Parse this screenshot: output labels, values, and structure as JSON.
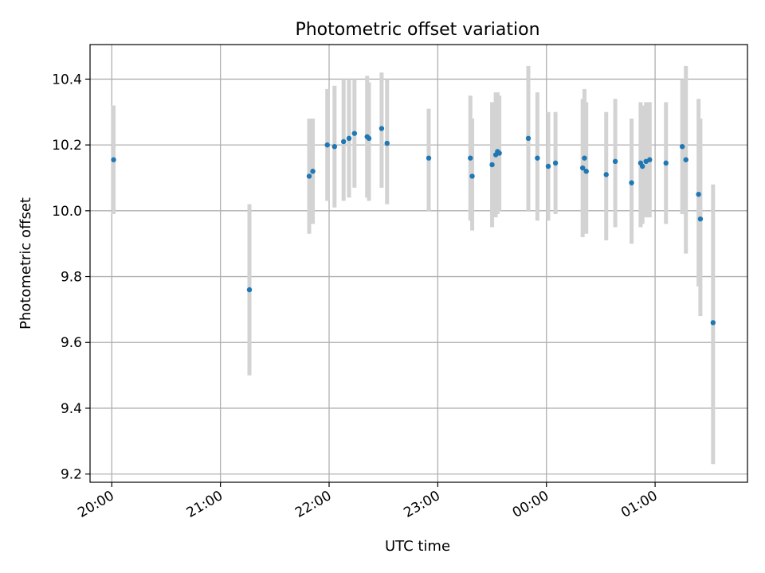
{
  "chart_data": {
    "type": "scatter",
    "title": "Photometric offset variation",
    "xlabel": "UTC time",
    "ylabel": "Photometric offset",
    "xlim": [
      "2023-01-01T19:48:00",
      "2023-01-02T01:51:00"
    ],
    "ylim": [
      9.175,
      10.505
    ],
    "grid": true,
    "x_ticks": [
      {
        "value": "2023-01-01T20:00:00",
        "label": "20:00"
      },
      {
        "value": "2023-01-01T21:00:00",
        "label": "21:00"
      },
      {
        "value": "2023-01-01T22:00:00",
        "label": "22:00"
      },
      {
        "value": "2023-01-01T23:00:00",
        "label": "23:00"
      },
      {
        "value": "2023-01-02T00:00:00",
        "label": "00:00"
      },
      {
        "value": "2023-01-02T01:00:00",
        "label": "01:00"
      }
    ],
    "y_ticks": [
      {
        "value": 9.2,
        "label": "9.2"
      },
      {
        "value": 9.4,
        "label": "9.4"
      },
      {
        "value": 9.6,
        "label": "9.6"
      },
      {
        "value": 9.8,
        "label": "9.8"
      },
      {
        "value": 10.0,
        "label": "10.0"
      },
      {
        "value": 10.2,
        "label": "10.2"
      },
      {
        "value": 10.4,
        "label": "10.4"
      }
    ],
    "colors": {
      "point": "#1f77b4",
      "errorbar": "#d3d3d3",
      "grid": "#b0b0b0"
    },
    "points": [
      {
        "x": "2023-01-01T20:01:00",
        "y": 10.155,
        "ylow": 9.99,
        "yhigh": 10.32
      },
      {
        "x": "2023-01-01T21:16:00",
        "y": 9.76,
        "ylow": 9.5,
        "yhigh": 10.02
      },
      {
        "x": "2023-01-01T21:49:00",
        "y": 10.105,
        "ylow": 9.93,
        "yhigh": 10.28
      },
      {
        "x": "2023-01-01T21:51:00",
        "y": 10.12,
        "ylow": 9.96,
        "yhigh": 10.28
      },
      {
        "x": "2023-01-01T21:59:00",
        "y": 10.2,
        "ylow": 10.03,
        "yhigh": 10.37
      },
      {
        "x": "2023-01-01T22:03:00",
        "y": 10.195,
        "ylow": 10.01,
        "yhigh": 10.38
      },
      {
        "x": "2023-01-01T22:08:00",
        "y": 10.21,
        "ylow": 10.03,
        "yhigh": 10.4
      },
      {
        "x": "2023-01-01T22:11:00",
        "y": 10.22,
        "ylow": 10.04,
        "yhigh": 10.4
      },
      {
        "x": "2023-01-01T22:14:00",
        "y": 10.235,
        "ylow": 10.07,
        "yhigh": 10.4
      },
      {
        "x": "2023-01-01T22:21:00",
        "y": 10.225,
        "ylow": 10.04,
        "yhigh": 10.41
      },
      {
        "x": "2023-01-01T22:22:00",
        "y": 10.22,
        "ylow": 10.03,
        "yhigh": 10.39
      },
      {
        "x": "2023-01-01T22:29:00",
        "y": 10.25,
        "ylow": 10.07,
        "yhigh": 10.42
      },
      {
        "x": "2023-01-01T22:32:00",
        "y": 10.205,
        "ylow": 10.02,
        "yhigh": 10.4
      },
      {
        "x": "2023-01-01T22:55:00",
        "y": 10.16,
        "ylow": 10.0,
        "yhigh": 10.31
      },
      {
        "x": "2023-01-01T23:18:00",
        "y": 10.16,
        "ylow": 9.97,
        "yhigh": 10.35
      },
      {
        "x": "2023-01-01T23:19:00",
        "y": 10.105,
        "ylow": 9.94,
        "yhigh": 10.28
      },
      {
        "x": "2023-01-01T23:30:00",
        "y": 10.14,
        "ylow": 9.95,
        "yhigh": 10.33
      },
      {
        "x": "2023-01-01T23:32:00",
        "y": 10.17,
        "ylow": 9.98,
        "yhigh": 10.36
      },
      {
        "x": "2023-01-01T23:33:00",
        "y": 10.18,
        "ylow": 9.99,
        "yhigh": 10.36
      },
      {
        "x": "2023-01-01T23:34:00",
        "y": 10.175,
        "ylow": 10.0,
        "yhigh": 10.35
      },
      {
        "x": "2023-01-01T23:50:00",
        "y": 10.22,
        "ylow": 10.0,
        "yhigh": 10.44
      },
      {
        "x": "2023-01-01T23:55:00",
        "y": 10.16,
        "ylow": 9.97,
        "yhigh": 10.36
      },
      {
        "x": "2023-01-02T00:01:00",
        "y": 10.135,
        "ylow": 9.97,
        "yhigh": 10.3
      },
      {
        "x": "2023-01-02T00:05:00",
        "y": 10.145,
        "ylow": 9.99,
        "yhigh": 10.3
      },
      {
        "x": "2023-01-02T00:20:00",
        "y": 10.13,
        "ylow": 9.92,
        "yhigh": 10.34
      },
      {
        "x": "2023-01-02T00:21:00",
        "y": 10.16,
        "ylow": 9.95,
        "yhigh": 10.37
      },
      {
        "x": "2023-01-02T00:22:00",
        "y": 10.12,
        "ylow": 9.93,
        "yhigh": 10.33
      },
      {
        "x": "2023-01-02T00:33:00",
        "y": 10.11,
        "ylow": 9.91,
        "yhigh": 10.3
      },
      {
        "x": "2023-01-02T00:38:00",
        "y": 10.15,
        "ylow": 9.95,
        "yhigh": 10.34
      },
      {
        "x": "2023-01-02T00:47:00",
        "y": 10.085,
        "ylow": 9.9,
        "yhigh": 10.28
      },
      {
        "x": "2023-01-02T00:52:00",
        "y": 10.145,
        "ylow": 9.95,
        "yhigh": 10.33
      },
      {
        "x": "2023-01-02T00:53:00",
        "y": 10.135,
        "ylow": 9.96,
        "yhigh": 10.32
      },
      {
        "x": "2023-01-02T00:55:00",
        "y": 10.15,
        "ylow": 9.98,
        "yhigh": 10.33
      },
      {
        "x": "2023-01-02T00:57:00",
        "y": 10.155,
        "ylow": 9.98,
        "yhigh": 10.33
      },
      {
        "x": "2023-01-02T01:06:00",
        "y": 10.145,
        "ylow": 9.96,
        "yhigh": 10.33
      },
      {
        "x": "2023-01-02T01:15:00",
        "y": 10.195,
        "ylow": 9.99,
        "yhigh": 10.4
      },
      {
        "x": "2023-01-02T01:17:00",
        "y": 10.155,
        "ylow": 9.87,
        "yhigh": 10.44
      },
      {
        "x": "2023-01-02T01:24:00",
        "y": 10.05,
        "ylow": 9.77,
        "yhigh": 10.34
      },
      {
        "x": "2023-01-02T01:25:00",
        "y": 9.975,
        "ylow": 9.68,
        "yhigh": 10.28
      },
      {
        "x": "2023-01-02T01:32:00",
        "y": 9.66,
        "ylow": 9.23,
        "yhigh": 10.08
      }
    ]
  }
}
